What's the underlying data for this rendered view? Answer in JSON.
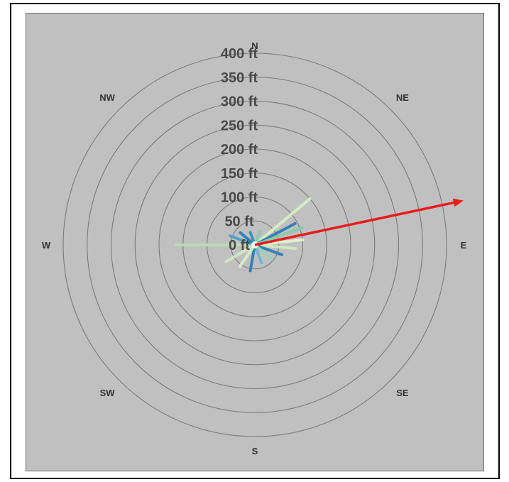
{
  "chart_data": {
    "type": "polar",
    "ring_labels": [
      "0 ft",
      "50 ft",
      "100 ft",
      "150 ft",
      "200 ft",
      "250 ft",
      "300 ft",
      "350 ft",
      "400 ft"
    ],
    "rings_ft": [
      50,
      100,
      150,
      200,
      250,
      300,
      350,
      400
    ],
    "radial_max_ft": 460,
    "directions": [
      {
        "label": "N",
        "bearing": 0
      },
      {
        "label": "NE",
        "bearing": 45
      },
      {
        "label": "E",
        "bearing": 90
      },
      {
        "label": "SE",
        "bearing": 135
      },
      {
        "label": "S",
        "bearing": 180
      },
      {
        "label": "SW",
        "bearing": 225
      },
      {
        "label": "W",
        "bearing": 270
      },
      {
        "label": "NW",
        "bearing": 315
      }
    ],
    "background_color": "#c0c0c0",
    "ring_color": "#7a7a7a",
    "rays": [
      {
        "bearing": 50,
        "length_ft": 150,
        "color": "#d8efc0"
      },
      {
        "bearing": 62,
        "length_ft": 95,
        "color": "#2a7fb8"
      },
      {
        "bearing": 70,
        "length_ft": 105,
        "color": "#86cca8"
      },
      {
        "bearing": 84,
        "length_ft": 100,
        "color": "#e4f2cc"
      },
      {
        "bearing": 95,
        "length_ft": 85,
        "color": "#cfe9c0"
      },
      {
        "bearing": 110,
        "length_ft": 60,
        "color": "#2a7fb8"
      },
      {
        "bearing": 130,
        "length_ft": 45,
        "color": "#9dd3b2"
      },
      {
        "bearing": 160,
        "length_ft": 40,
        "color": "#6cb7d6"
      },
      {
        "bearing": 190,
        "length_ft": 55,
        "color": "#2a7fb8"
      },
      {
        "bearing": 215,
        "length_ft": 55,
        "color": "#d8efc0"
      },
      {
        "bearing": 240,
        "length_ft": 70,
        "color": "#cfe9c0"
      },
      {
        "bearing": 270,
        "length_ft": 165,
        "color": "#b8e0b0"
      },
      {
        "bearing": 290,
        "length_ft": 55,
        "color": "#4aa3c6"
      },
      {
        "bearing": 310,
        "length_ft": 40,
        "color": "#2a7fb8"
      },
      {
        "bearing": 340,
        "length_ft": 28,
        "color": "#3a8fbf"
      },
      {
        "bearing": 20,
        "length_ft": 30,
        "color": "#86cca8"
      }
    ],
    "resultant": {
      "bearing": 78,
      "length_ft": 445,
      "color": "#e81c1c"
    }
  }
}
